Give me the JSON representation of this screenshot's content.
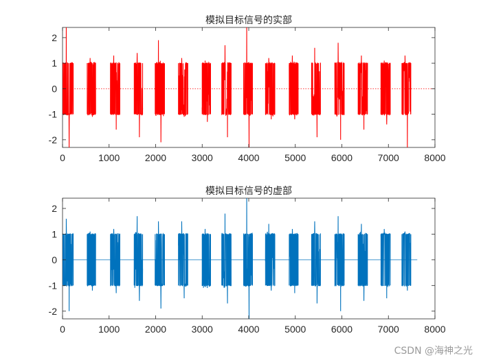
{
  "chart_data": [
    {
      "type": "line",
      "title": "模拟目标信号的实部",
      "color": "#ff0000",
      "xlim": [
        0,
        8000
      ],
      "ylim": [
        -2.3,
        2.4
      ],
      "xticks": [
        0,
        1000,
        2000,
        3000,
        4000,
        5000,
        6000,
        7000,
        8000
      ],
      "yticks": [
        -2,
        -1,
        0,
        1,
        2
      ],
      "zero_line": "dotted",
      "bursts": [
        {
          "start": 0,
          "end": 230,
          "max": 2.4,
          "min": -2.3
        },
        {
          "start": 530,
          "end": 710,
          "max": 1.2,
          "min": -1.1
        },
        {
          "start": 1030,
          "end": 1230,
          "max": 1.3,
          "min": -1.6
        },
        {
          "start": 1540,
          "end": 1720,
          "max": 1.4,
          "min": -1.9
        },
        {
          "start": 1990,
          "end": 2190,
          "max": 1.9,
          "min": -2.1
        },
        {
          "start": 2490,
          "end": 2690,
          "max": 1.2,
          "min": -1.1
        },
        {
          "start": 3000,
          "end": 3180,
          "max": 1.1,
          "min": -1.3
        },
        {
          "start": 3420,
          "end": 3620,
          "max": 1.7,
          "min": -1.9
        },
        {
          "start": 3890,
          "end": 4080,
          "max": 2.4,
          "min": -2.3
        },
        {
          "start": 4360,
          "end": 4560,
          "max": 1.2,
          "min": -1.2
        },
        {
          "start": 4870,
          "end": 5060,
          "max": 1.3,
          "min": -1.2
        },
        {
          "start": 5350,
          "end": 5540,
          "max": 1.6,
          "min": -1.9
        },
        {
          "start": 5850,
          "end": 6050,
          "max": 1.8,
          "min": -2.0
        },
        {
          "start": 6350,
          "end": 6550,
          "max": 1.3,
          "min": -1.6
        },
        {
          "start": 6840,
          "end": 7040,
          "max": 1.1,
          "min": -1.4
        },
        {
          "start": 7290,
          "end": 7480,
          "max": 1.3,
          "min": -2.3
        }
      ]
    },
    {
      "type": "line",
      "title": "模拟目标信号的虚部",
      "color": "#0072bd",
      "xlim": [
        0,
        8000
      ],
      "ylim": [
        -2.3,
        2.4
      ],
      "xticks": [
        0,
        1000,
        2000,
        3000,
        4000,
        5000,
        6000,
        7000,
        8000
      ],
      "yticks": [
        -2,
        -1,
        0,
        1,
        2
      ],
      "zero_line": "solid",
      "zero_line_end": 7620,
      "bursts": [
        {
          "start": 0,
          "end": 230,
          "max": 1.6,
          "min": -2.0
        },
        {
          "start": 530,
          "end": 710,
          "max": 1.1,
          "min": -1.2
        },
        {
          "start": 1030,
          "end": 1230,
          "max": 1.2,
          "min": -1.3
        },
        {
          "start": 1540,
          "end": 1720,
          "max": 1.7,
          "min": -1.6
        },
        {
          "start": 1990,
          "end": 2190,
          "max": 1.5,
          "min": -1.9
        },
        {
          "start": 2490,
          "end": 2690,
          "max": 1.5,
          "min": -1.5
        },
        {
          "start": 3000,
          "end": 3180,
          "max": 1.2,
          "min": -1.1
        },
        {
          "start": 3420,
          "end": 3620,
          "max": 1.8,
          "min": -1.7
        },
        {
          "start": 3890,
          "end": 4080,
          "max": 2.4,
          "min": -2.3
        },
        {
          "start": 4360,
          "end": 4560,
          "max": 1.4,
          "min": -1.2
        },
        {
          "start": 4870,
          "end": 5060,
          "max": 1.2,
          "min": -1.3
        },
        {
          "start": 5350,
          "end": 5540,
          "max": 1.5,
          "min": -1.7
        },
        {
          "start": 5850,
          "end": 6050,
          "max": 1.7,
          "min": -2.0
        },
        {
          "start": 6350,
          "end": 6550,
          "max": 1.4,
          "min": -1.6
        },
        {
          "start": 6840,
          "end": 7040,
          "max": 1.2,
          "min": -1.5
        },
        {
          "start": 7290,
          "end": 7480,
          "max": 1.1,
          "min": -1.2
        }
      ]
    }
  ],
  "watermark": "CSDN @海神之光"
}
